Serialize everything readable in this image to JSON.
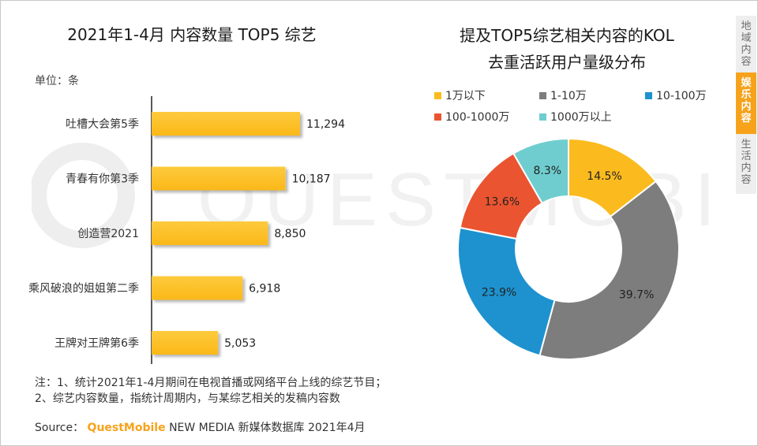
{
  "watermark": "QUESTMOBILE",
  "left": {
    "title": "2021年1-4月 内容数量 TOP5 综艺",
    "unit": "单位：条"
  },
  "right": {
    "title_line1": "提及TOP5综艺相关内容的KOL",
    "title_line2": "去重活跃用户量级分布"
  },
  "notes": {
    "line1": "注：1、统计2021年1-4月期间在电视首播或网络平台上线的综艺节目；",
    "line2": "2、综艺内容数量，指统计周期内，与某综艺相关的发稿内容数"
  },
  "source": {
    "prefix": "Source：",
    "brand": "QuestMobile",
    "suffix": " NEW MEDIA 新媒体数据库 2021年4月"
  },
  "tabs": [
    {
      "label": "地域内容"
    },
    {
      "label": "娱乐内容"
    },
    {
      "label": "生活内容"
    }
  ],
  "colors": {
    "bar": "#fbb818",
    "c1": "#fbbb1f",
    "c2": "#7d7d7d",
    "c3": "#1d92cf",
    "c4": "#ea5430",
    "c5": "#6fcdcf",
    "tab_active": "#f7a21b",
    "tab_text": "#6d6d6d"
  },
  "chart_data": [
    {
      "type": "bar",
      "orientation": "horizontal",
      "title": "2021年1-4月 内容数量 TOP5 综艺",
      "unit": "单位：条",
      "categories": [
        "吐槽大会第5季",
        "青春有你第3季",
        "创造营2021",
        "乘风破浪的姐姐第二季",
        "王牌对王牌第6季"
      ],
      "values": [
        11294,
        10187,
        8850,
        6918,
        5053
      ],
      "labels": [
        "11,294",
        "10,187",
        "8,850",
        "6,918",
        "5,053"
      ],
      "xlim": [
        0,
        13500
      ]
    },
    {
      "type": "pie",
      "donut": true,
      "title": "提及TOP5综艺相关内容的KOL去重活跃用户量级分布",
      "legend": "top",
      "categories": [
        "1万以下",
        "1-10万",
        "10-100万",
        "100-1000万",
        "1000万以上"
      ],
      "values": [
        14.5,
        39.7,
        23.9,
        13.6,
        8.3
      ],
      "labels": [
        "14.5%",
        "39.7%",
        "23.9%",
        "13.6%",
        "8.3%"
      ]
    }
  ]
}
